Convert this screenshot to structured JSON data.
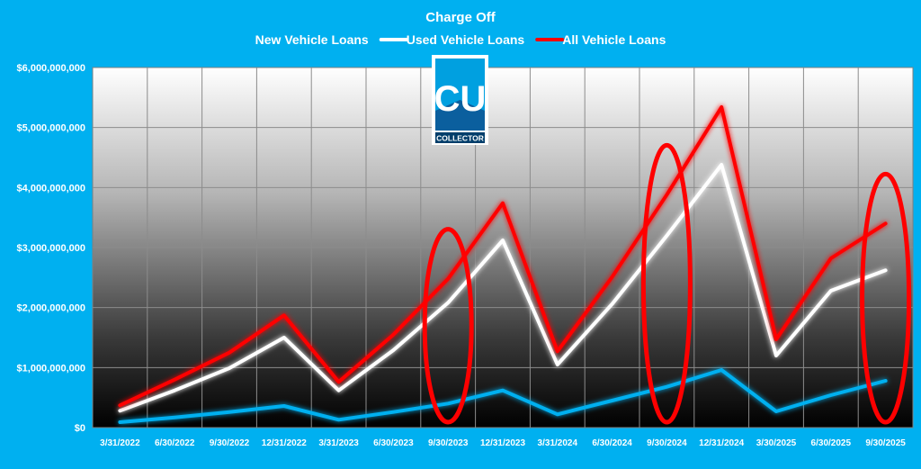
{
  "chart_data": {
    "type": "line",
    "title": "Charge Off",
    "categories": [
      "3/31/2022",
      "6/30/2022",
      "9/30/2022",
      "12/31/2022",
      "3/31/2023",
      "6/30/2023",
      "9/30/2023",
      "12/31/2023",
      "3/31/2024",
      "6/30/2024",
      "9/30/2024",
      "12/31/2024",
      "3/30/2025",
      "6/30/2025",
      "9/30/2025"
    ],
    "series": [
      {
        "name": "New Vehicle Loans",
        "color": "#00b0f0",
        "values": [
          90000000,
          170000000,
          260000000,
          360000000,
          130000000,
          260000000,
          400000000,
          620000000,
          220000000,
          450000000,
          680000000,
          960000000,
          270000000,
          540000000,
          780000000
        ]
      },
      {
        "name": "Used Vehicle Loans",
        "color": "#ffffff",
        "values": [
          280000000,
          620000000,
          990000000,
          1500000000,
          620000000,
          1290000000,
          2080000000,
          3120000000,
          1050000000,
          2060000000,
          3200000000,
          4380000000,
          1200000000,
          2280000000,
          2620000000
        ]
      },
      {
        "name": "All Vehicle Loans",
        "color": "#ff0000",
        "values": [
          370000000,
          800000000,
          1250000000,
          1870000000,
          760000000,
          1550000000,
          2480000000,
          3740000000,
          1270000000,
          2510000000,
          3880000000,
          5340000000,
          1470000000,
          2820000000,
          3400000000
        ]
      }
    ],
    "yticks": [
      "$0",
      "$1,000,000,000",
      "$2,000,000,000",
      "$3,000,000,000",
      "$4,000,000,000",
      "$5,000,000,000",
      "$6,000,000,000"
    ],
    "ylim": [
      0,
      6000000000
    ],
    "grid": true,
    "legend_position": "top",
    "highlighted_categories": [
      "9/30/2023",
      "9/30/2024",
      "9/30/2025"
    ],
    "highlight_color": "#ff0000"
  },
  "logo": {
    "icon": "cu-collector-logo",
    "letters": "CU",
    "label": "COLLECTOR"
  }
}
